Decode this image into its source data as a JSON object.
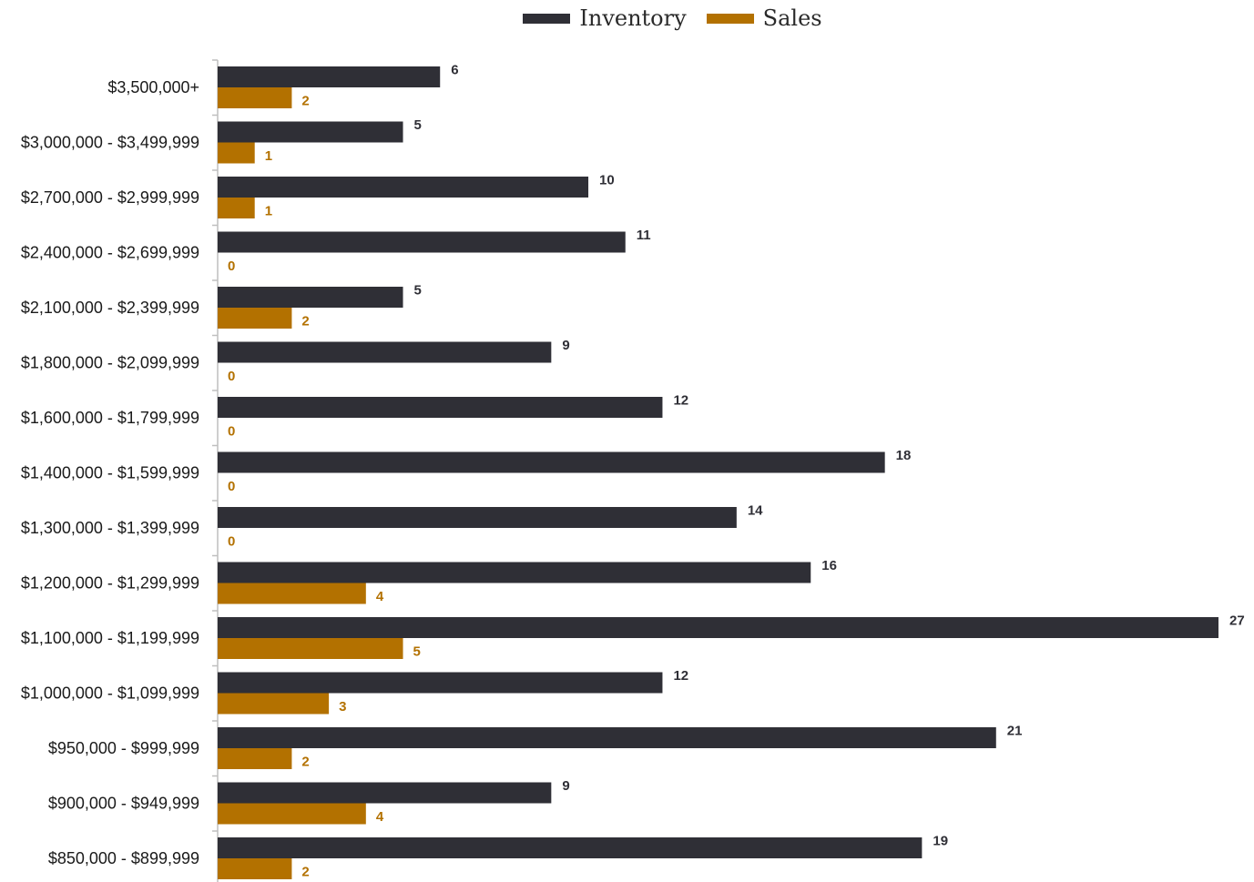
{
  "colors": {
    "inventory": "#2f2f36",
    "sales": "#b37100",
    "axis": "#bfbfbf",
    "category_label": "#1a1a1a"
  },
  "legend": {
    "items": [
      {
        "label": "Inventory",
        "color_key": "inventory"
      },
      {
        "label": "Sales",
        "color_key": "sales"
      }
    ],
    "placement": "top-center"
  },
  "chart_data": {
    "type": "bar",
    "orientation": "horizontal",
    "categories": [
      "$3,500,000+",
      "$3,000,000 - $3,499,999",
      "$2,700,000 - $2,999,999",
      "$2,400,000 - $2,699,999",
      "$2,100,000 - $2,399,999",
      "$1,800,000 - $2,099,999",
      "$1,600,000 - $1,799,999",
      "$1,400,000 - $1,599,999",
      "$1,300,000 - $1,399,999",
      "$1,200,000 - $1,299,999",
      "$1,100,000 - $1,199,999",
      "$1,000,000 - $1,099,999",
      "$950,000 - $999,999",
      "$900,000 - $949,999",
      "$850,000 - $899,999"
    ],
    "series": [
      {
        "name": "Inventory",
        "values": [
          6,
          5,
          10,
          11,
          5,
          9,
          12,
          18,
          14,
          16,
          27,
          12,
          21,
          9,
          19
        ]
      },
      {
        "name": "Sales",
        "values": [
          2,
          1,
          1,
          0,
          2,
          0,
          0,
          0,
          0,
          4,
          5,
          3,
          2,
          4,
          2
        ]
      }
    ],
    "xlim": [
      0,
      27
    ],
    "grid": false,
    "data_labels": true
  }
}
